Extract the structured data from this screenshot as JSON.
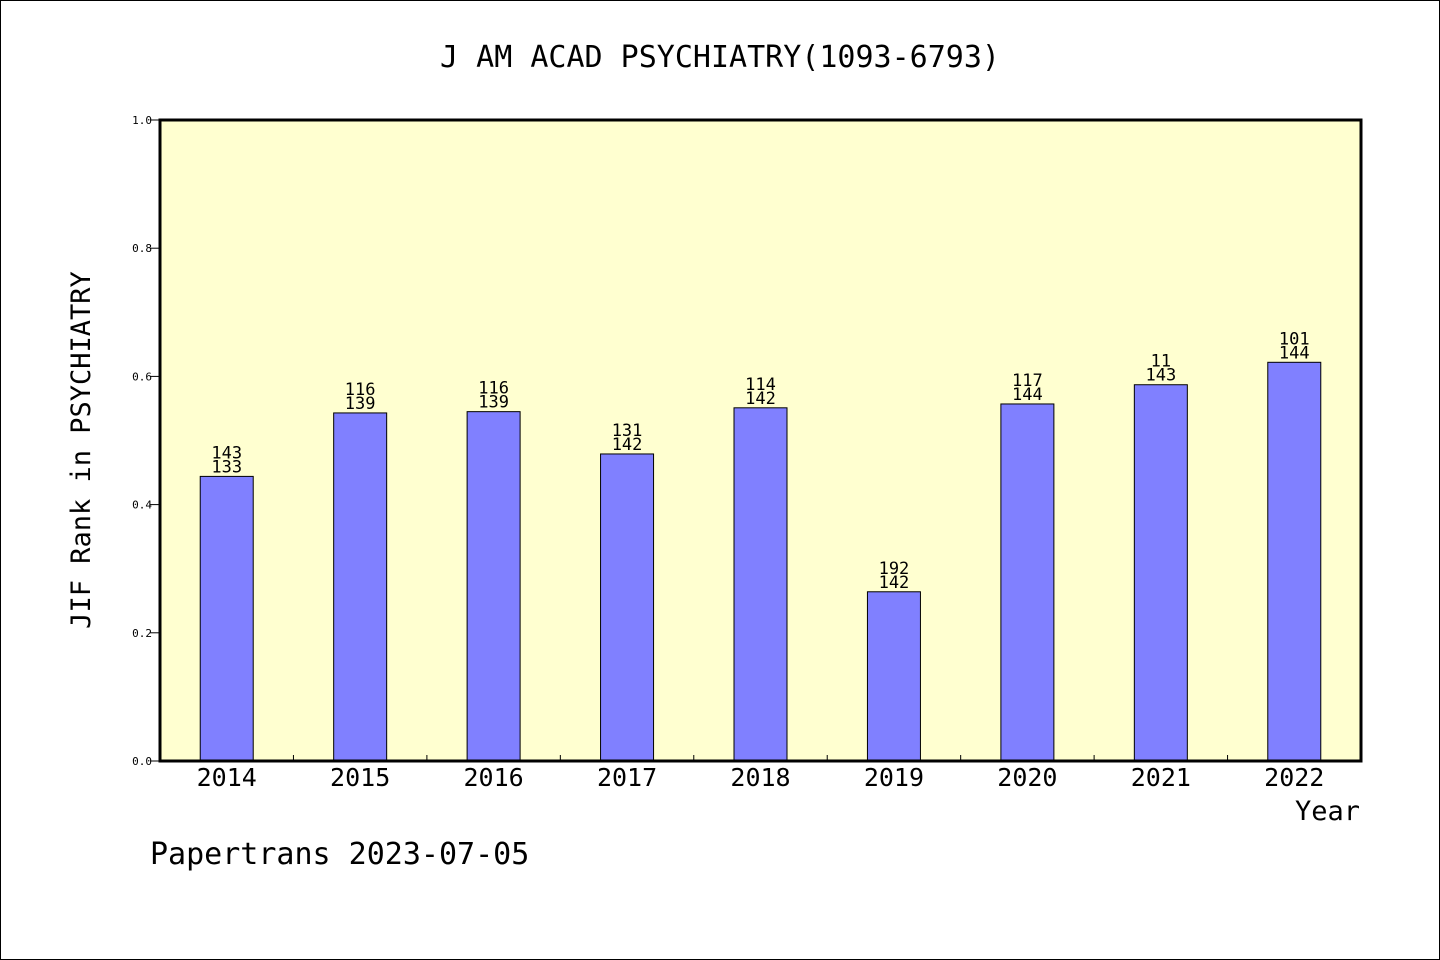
{
  "chart_data": {
    "type": "bar",
    "title": "J AM ACAD PSYCHIATRY(1093-6793)",
    "xlabel": "Year",
    "ylabel": "JIF Rank in PSYCHIATRY",
    "ylim": [
      0,
      1.0
    ],
    "yticks": [
      "0.0",
      "0.2",
      "0.4",
      "0.6",
      "0.8",
      "1.0"
    ],
    "categories": [
      "2014",
      "2015",
      "2016",
      "2017",
      "2018",
      "2019",
      "2020",
      "2021",
      "2022"
    ],
    "values": [
      0.444,
      0.543,
      0.545,
      0.479,
      0.551,
      0.264,
      0.557,
      0.587,
      0.622
    ],
    "annotations": [
      [
        "143",
        "133"
      ],
      [
        "116",
        "139"
      ],
      [
        "116",
        "139"
      ],
      [
        "131",
        "142"
      ],
      [
        "114",
        "142"
      ],
      [
        "192",
        "142"
      ],
      [
        "117",
        "144"
      ],
      [
        "11",
        "143"
      ],
      [
        "101",
        "144"
      ]
    ],
    "grid": false,
    "colors": {
      "bar": "#8080ff",
      "plot_background": "#ffffd0",
      "axes": "#000000"
    }
  },
  "footer": "Papertrans 2023-07-05"
}
